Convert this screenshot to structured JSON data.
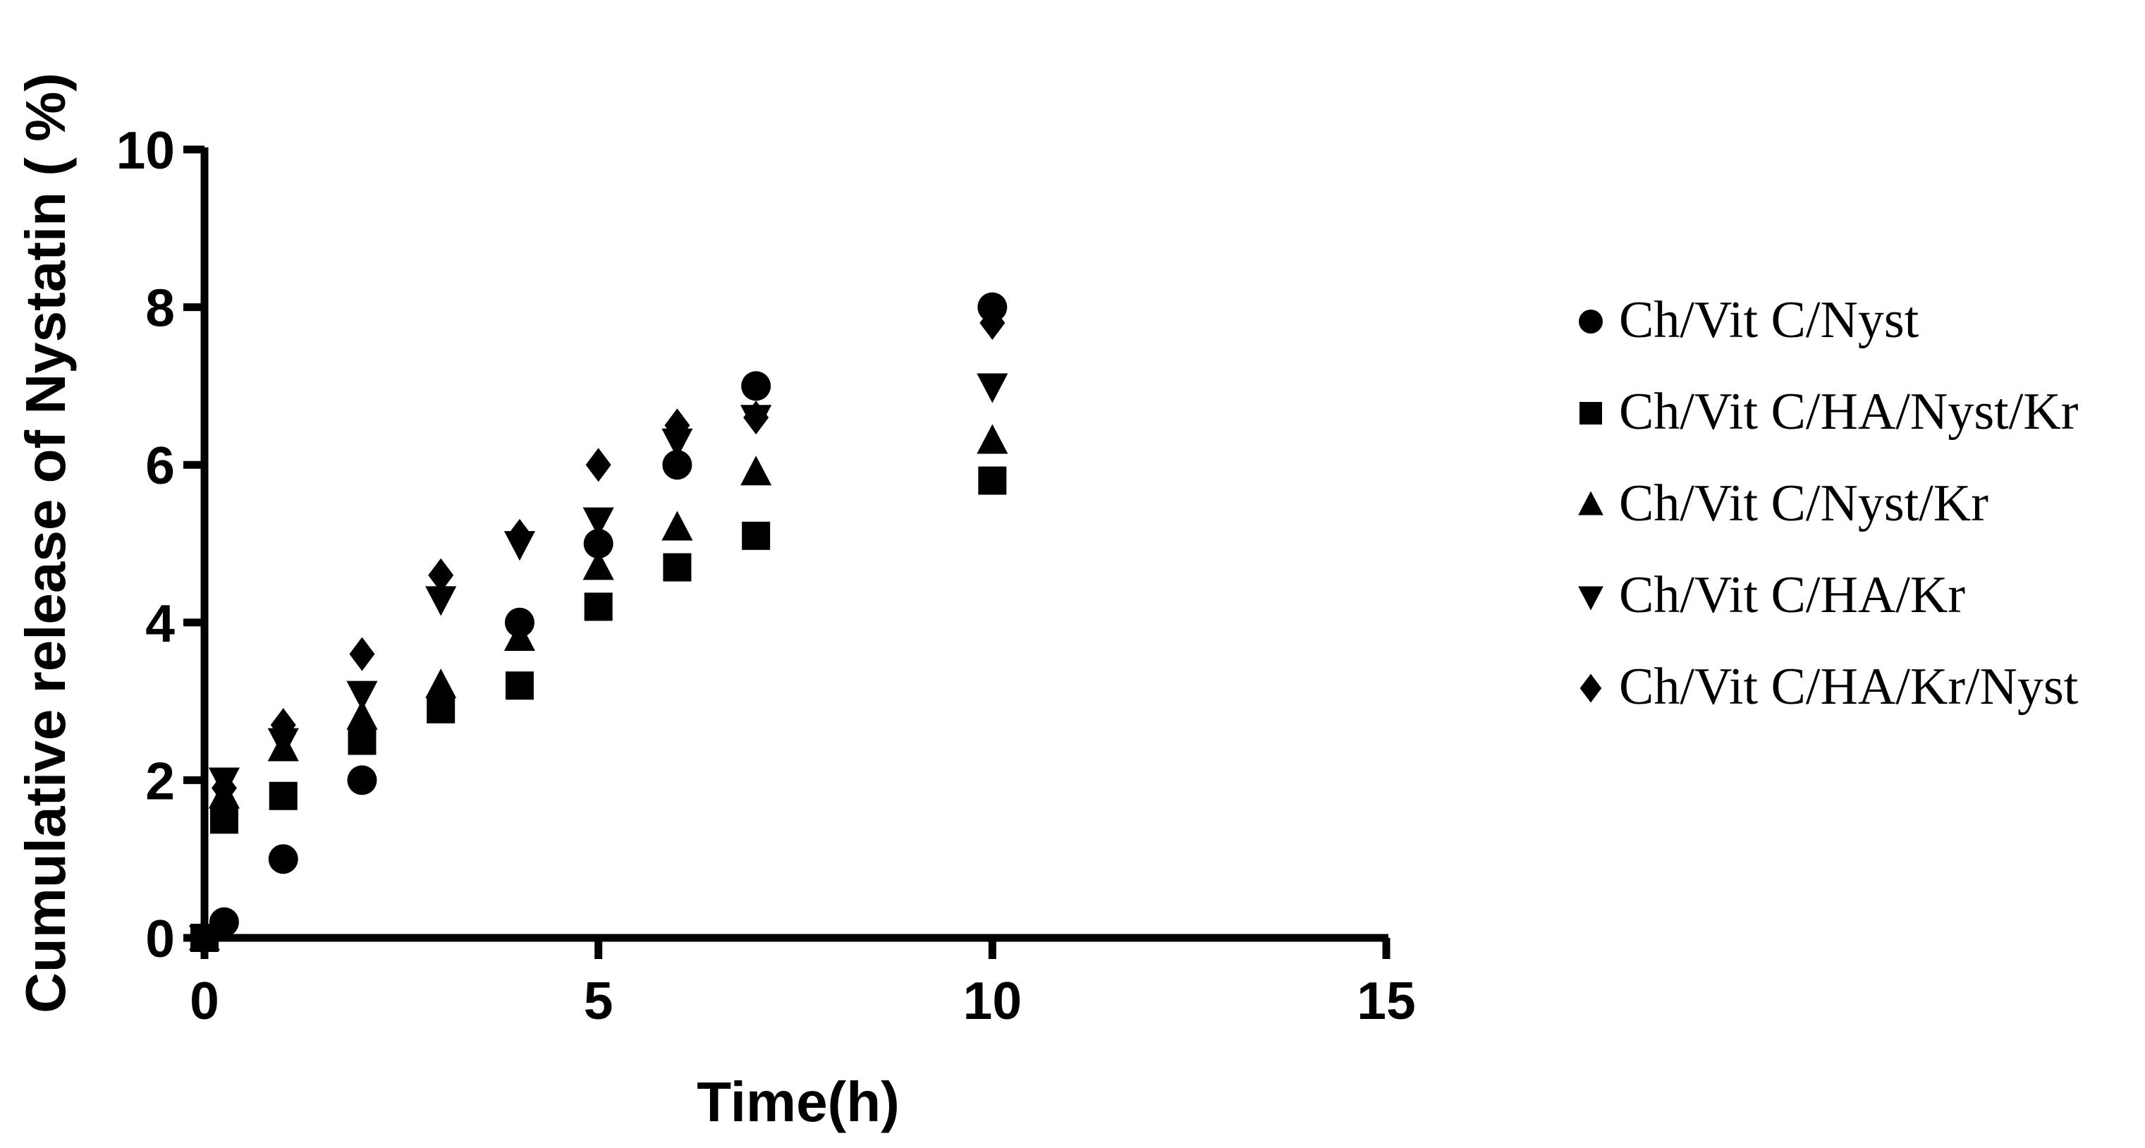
{
  "chart_data": {
    "type": "scatter",
    "xlabel": "Time(h)",
    "ylabel": "Cumulative release of Nystatin ( %)",
    "xlim": [
      0,
      15
    ],
    "ylim": [
      0,
      10
    ],
    "xticks": [
      0,
      5,
      10,
      15
    ],
    "yticks": [
      0,
      2,
      4,
      6,
      8,
      10
    ],
    "grid": false,
    "legend_position": "right",
    "series": [
      {
        "name": "Ch/Vit C/Nyst",
        "marker": "circle",
        "color": "#000000",
        "points": [
          [
            0,
            0
          ],
          [
            0.25,
            0.2
          ],
          [
            1,
            1
          ],
          [
            2,
            2
          ],
          [
            4,
            4
          ],
          [
            5,
            5
          ],
          [
            6,
            6
          ],
          [
            7,
            7
          ],
          [
            10,
            8
          ]
        ]
      },
      {
        "name": "Ch/Vit C/HA/Nyst/Kr",
        "marker": "square",
        "color": "#000000",
        "points": [
          [
            0,
            0
          ],
          [
            0.25,
            1.5
          ],
          [
            1,
            1.8
          ],
          [
            2,
            2.5
          ],
          [
            3,
            2.9
          ],
          [
            4,
            3.2
          ],
          [
            5,
            4.2
          ],
          [
            6,
            4.7
          ],
          [
            7,
            5.1
          ],
          [
            10,
            5.8
          ]
        ]
      },
      {
        "name": "Ch/Vit C/Nyst/Kr",
        "marker": "triangle-up",
        "color": "#000000",
        "points": [
          [
            0,
            0
          ],
          [
            0.25,
            1.8
          ],
          [
            1,
            2.4
          ],
          [
            2,
            2.8
          ],
          [
            3,
            3.2
          ],
          [
            4,
            3.8
          ],
          [
            5,
            4.7
          ],
          [
            6,
            5.2
          ],
          [
            7,
            5.9
          ],
          [
            10,
            6.3
          ]
        ]
      },
      {
        "name": "Ch/Vit C/HA/Kr",
        "marker": "triangle-down",
        "color": "#000000",
        "points": [
          [
            0,
            0
          ],
          [
            0.25,
            2.0
          ],
          [
            1,
            2.5
          ],
          [
            2,
            3.1
          ],
          [
            3,
            4.3
          ],
          [
            4,
            5.0
          ],
          [
            5,
            5.3
          ],
          [
            6,
            6.3
          ],
          [
            7,
            6.6
          ],
          [
            10,
            7.0
          ]
        ]
      },
      {
        "name": "Ch/Vit C/HA/Kr/Nyst",
        "marker": "diamond",
        "color": "#000000",
        "points": [
          [
            0,
            0
          ],
          [
            0.25,
            1.9
          ],
          [
            1,
            2.7
          ],
          [
            2,
            3.6
          ],
          [
            3,
            4.6
          ],
          [
            4,
            5.1
          ],
          [
            5,
            6.0
          ],
          [
            6,
            6.5
          ],
          [
            7,
            6.6
          ],
          [
            10,
            7.8
          ]
        ]
      }
    ]
  }
}
